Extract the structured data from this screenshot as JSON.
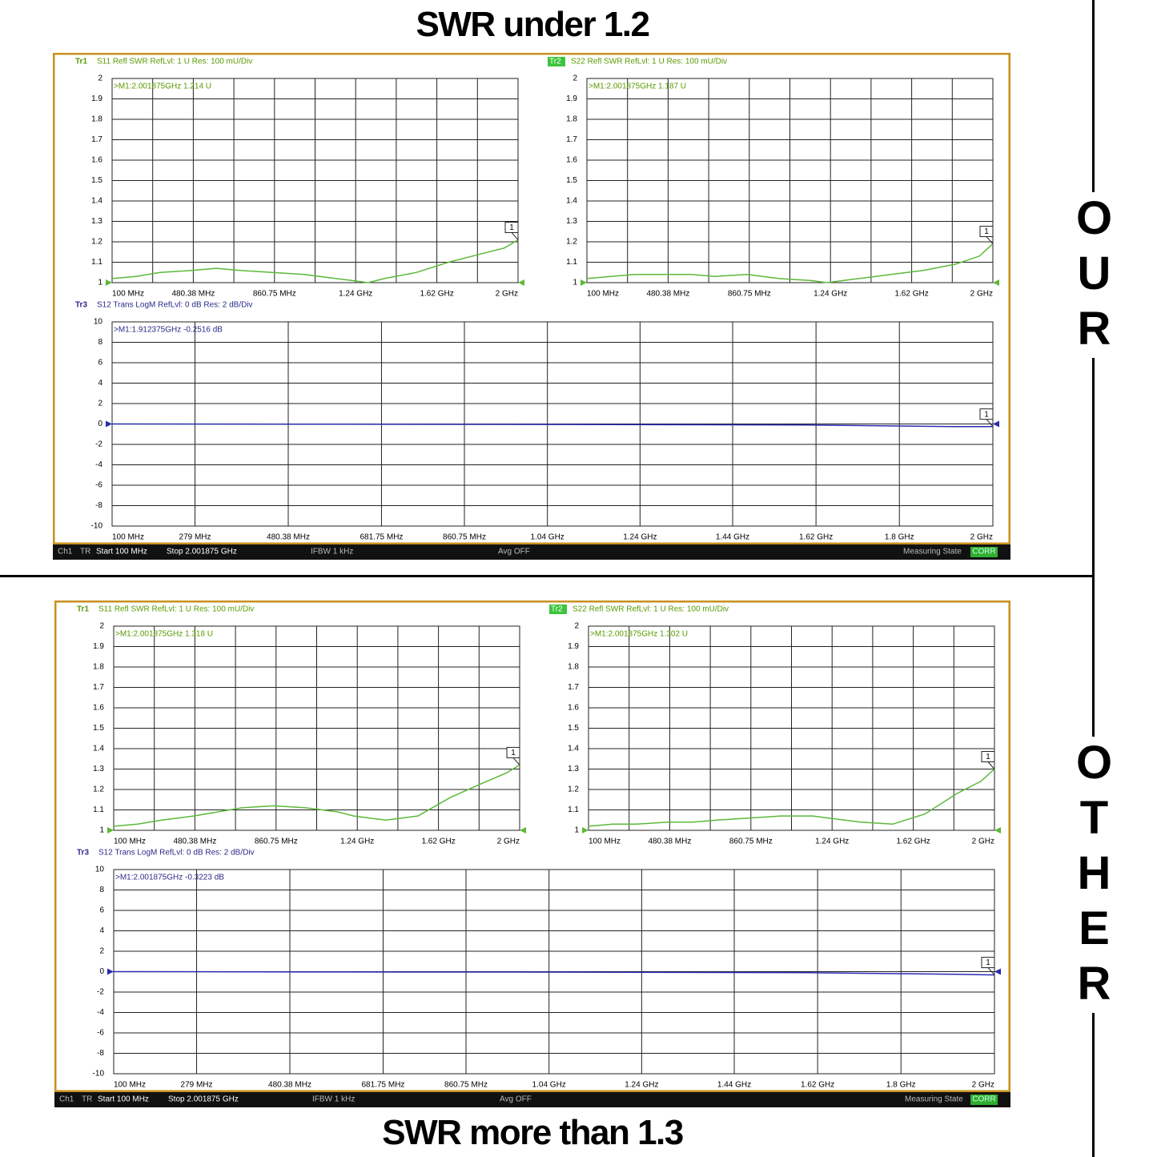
{
  "title_top": "SWR under 1.2",
  "title_bottom": "SWR more than 1.3",
  "side_top": "OUR",
  "side_bottom": "OTHER",
  "status_bars": [
    {
      "channel": "Ch1",
      "mode": "TR",
      "start": "Start 100 MHz",
      "stop": "Stop 2.001875 GHz",
      "ifbw": "IFBW 1 kHz",
      "avg": "Avg OFF",
      "state": "Measuring State",
      "corr": "CORR"
    },
    {
      "channel": "Ch1",
      "mode": "TR",
      "start": "Start 100 MHz",
      "stop": "Stop 2.001875 GHz",
      "ifbw": "IFBW 1 kHz",
      "avg": "Avg OFF",
      "state": "Measuring State",
      "corr": "CORR"
    }
  ],
  "chart_data": [
    {
      "type": "line",
      "trace": "Tr1",
      "title": "S11 Refl SWR RefLvl: 1  U Res: 100 mU/Div",
      "marker_readout": ">M1:2.001875GHz 1.214 U",
      "marker": "1",
      "color": "#5cb83a",
      "grid": true,
      "xlim": [
        100,
        2001.875
      ],
      "ylim": [
        1,
        2
      ],
      "xticks": [
        {
          "value": 100,
          "label": "100 MHz"
        },
        {
          "value": 290.19,
          "label": null
        },
        {
          "value": 480.38,
          "label": "480.38 MHz"
        },
        {
          "value": 670.56,
          "label": null
        },
        {
          "value": 860.75,
          "label": "860.75 MHz"
        },
        {
          "value": 1050.94,
          "label": null
        },
        {
          "value": 1241.13,
          "label": "1.24 GHz"
        },
        {
          "value": 1431.31,
          "label": null
        },
        {
          "value": 1621.5,
          "label": "1.62 GHz"
        },
        {
          "value": 1811.69,
          "label": null
        },
        {
          "value": 2001.875,
          "label": "2 GHz"
        }
      ],
      "yticks": [
        1,
        1.1,
        1.2,
        1.3,
        1.4,
        1.5,
        1.6,
        1.7,
        1.8,
        1.9,
        2
      ],
      "x": [
        100,
        212.5,
        325,
        475,
        588,
        700,
        850,
        1000,
        1150,
        1225,
        1300,
        1375,
        1525,
        1676,
        1826,
        1938,
        2001.875
      ],
      "values": [
        1.02,
        1.03,
        1.05,
        1.06,
        1.07,
        1.06,
        1.05,
        1.04,
        1.02,
        1.01,
        1.0,
        1.02,
        1.05,
        1.1,
        1.14,
        1.17,
        1.21
      ]
    },
    {
      "type": "line",
      "trace": "Tr2",
      "title": "S22 Refl SWR RefLvl: 1  U Res: 100 mU/Div",
      "marker_readout": ">M1:2.001875GHz 1.187 U",
      "marker": "1",
      "color": "#5cb83a",
      "grid": true,
      "xlim": [
        100,
        2001.875
      ],
      "ylim": [
        1,
        2
      ],
      "xticks": [
        {
          "value": 100,
          "label": "100 MHz"
        },
        {
          "value": 290.19,
          "label": null
        },
        {
          "value": 480.38,
          "label": "480.38 MHz"
        },
        {
          "value": 670.56,
          "label": null
        },
        {
          "value": 860.75,
          "label": "860.75 MHz"
        },
        {
          "value": 1050.94,
          "label": null
        },
        {
          "value": 1241.13,
          "label": "1.24 GHz"
        },
        {
          "value": 1431.31,
          "label": null
        },
        {
          "value": 1621.5,
          "label": "1.62 GHz"
        },
        {
          "value": 1811.69,
          "label": null
        },
        {
          "value": 2001.875,
          "label": "2 GHz"
        }
      ],
      "yticks": [
        1,
        1.1,
        1.2,
        1.3,
        1.4,
        1.5,
        1.6,
        1.7,
        1.8,
        1.9,
        2
      ],
      "x": [
        100,
        212.5,
        325,
        475,
        588,
        700,
        850,
        1000,
        1150,
        1225,
        1300,
        1375,
        1525,
        1676,
        1826,
        1938,
        2001.875
      ],
      "values": [
        1.02,
        1.03,
        1.04,
        1.04,
        1.04,
        1.03,
        1.04,
        1.02,
        1.01,
        1.0,
        1.01,
        1.02,
        1.04,
        1.06,
        1.09,
        1.13,
        1.19
      ]
    },
    {
      "type": "line",
      "trace": "Tr3",
      "title": "S12 Trans LogM RefLvl: 0  dB Res: 2  dB/Div",
      "marker_readout": ">M1:1.912375GHz -0.2516 dB",
      "marker": "1",
      "color": "#2a2ab0",
      "grid": true,
      "xlim": [
        100,
        2001.875
      ],
      "ylim": [
        -10,
        10
      ],
      "xticks": [
        {
          "value": 100,
          "label": "100 MHz"
        },
        {
          "value": 279,
          "label": "279 MHz"
        },
        {
          "value": 480.38,
          "label": "480.38 MHz"
        },
        {
          "value": 681.75,
          "label": "681.75 MHz"
        },
        {
          "value": 860.75,
          "label": "860.75 MHz"
        },
        {
          "value": 1040,
          "label": "1.04 GHz"
        },
        {
          "value": 1240,
          "label": "1.24 GHz"
        },
        {
          "value": 1440,
          "label": "1.44 GHz"
        },
        {
          "value": 1620,
          "label": "1.62 GHz"
        },
        {
          "value": 1800,
          "label": "1.8 GHz"
        },
        {
          "value": 2001.875,
          "label": "2 GHz"
        }
      ],
      "yticks": [
        -10,
        -8,
        -6,
        -4,
        -2,
        0,
        2,
        4,
        6,
        8,
        10
      ],
      "x": [
        100,
        600,
        1100,
        1600,
        1912.375,
        2001.875
      ],
      "values": [
        0,
        -0.02,
        -0.05,
        -0.1,
        -0.25,
        -0.25
      ]
    },
    {
      "type": "line",
      "trace": "Tr1",
      "title": "S11 Refl SWR RefLvl: 1  U Res: 100 mU/Div",
      "marker_readout": ">M1:2.001875GHz 1.318 U",
      "marker": "1",
      "color": "#5cb83a",
      "grid": true,
      "xlim": [
        100,
        2001.875
      ],
      "ylim": [
        1,
        2
      ],
      "xticks": [
        {
          "value": 100,
          "label": "100 MHz"
        },
        {
          "value": 290.19,
          "label": null
        },
        {
          "value": 480.38,
          "label": "480.38 MHz"
        },
        {
          "value": 670.56,
          "label": null
        },
        {
          "value": 860.75,
          "label": "860.75 MHz"
        },
        {
          "value": 1050.94,
          "label": null
        },
        {
          "value": 1241.13,
          "label": "1.24 GHz"
        },
        {
          "value": 1431.31,
          "label": null
        },
        {
          "value": 1621.5,
          "label": "1.62 GHz"
        },
        {
          "value": 1811.69,
          "label": null
        },
        {
          "value": 2001.875,
          "label": "2 GHz"
        }
      ],
      "yticks": [
        1,
        1.1,
        1.2,
        1.3,
        1.4,
        1.5,
        1.6,
        1.7,
        1.8,
        1.9,
        2
      ],
      "x": [
        100,
        212.5,
        325,
        475,
        588,
        700,
        850,
        1000,
        1150,
        1225,
        1300,
        1375,
        1525,
        1676,
        1826,
        1938,
        2001.875
      ],
      "values": [
        1.02,
        1.03,
        1.05,
        1.07,
        1.09,
        1.11,
        1.12,
        1.11,
        1.09,
        1.07,
        1.06,
        1.05,
        1.07,
        1.16,
        1.23,
        1.28,
        1.32
      ]
    },
    {
      "type": "line",
      "trace": "Tr2",
      "title": "S22 Refl SWR RefLvl: 1  U Res: 100 mU/Div",
      "marker_readout": ">M1:2.001875GHz 1.302 U",
      "marker": "1",
      "color": "#5cb83a",
      "grid": true,
      "xlim": [
        100,
        2001.875
      ],
      "ylim": [
        1,
        2
      ],
      "xticks": [
        {
          "value": 100,
          "label": "100 MHz"
        },
        {
          "value": 290.19,
          "label": null
        },
        {
          "value": 480.38,
          "label": "480.38 MHz"
        },
        {
          "value": 670.56,
          "label": null
        },
        {
          "value": 860.75,
          "label": "860.75 MHz"
        },
        {
          "value": 1050.94,
          "label": null
        },
        {
          "value": 1241.13,
          "label": "1.24 GHz"
        },
        {
          "value": 1431.31,
          "label": null
        },
        {
          "value": 1621.5,
          "label": "1.62 GHz"
        },
        {
          "value": 1811.69,
          "label": null
        },
        {
          "value": 2001.875,
          "label": "2 GHz"
        }
      ],
      "yticks": [
        1,
        1.1,
        1.2,
        1.3,
        1.4,
        1.5,
        1.6,
        1.7,
        1.8,
        1.9,
        2
      ],
      "x": [
        100,
        212.5,
        325,
        475,
        588,
        700,
        850,
        1000,
        1150,
        1225,
        1300,
        1375,
        1525,
        1676,
        1826,
        1938,
        2001.875
      ],
      "values": [
        1.02,
        1.03,
        1.03,
        1.04,
        1.04,
        1.05,
        1.06,
        1.07,
        1.07,
        1.06,
        1.05,
        1.04,
        1.03,
        1.08,
        1.18,
        1.24,
        1.3
      ]
    },
    {
      "type": "line",
      "trace": "Tr3",
      "title": "S12 Trans LogM RefLvl: 0  dB Res: 2  dB/Div",
      "marker_readout": ">M1:2.001875GHz -0.3223 dB",
      "marker": "1",
      "color": "#2a2ab0",
      "grid": true,
      "xlim": [
        100,
        2001.875
      ],
      "ylim": [
        -10,
        10
      ],
      "xticks": [
        {
          "value": 100,
          "label": "100 MHz"
        },
        {
          "value": 279,
          "label": "279 MHz"
        },
        {
          "value": 480.38,
          "label": "480.38 MHz"
        },
        {
          "value": 681.75,
          "label": "681.75 MHz"
        },
        {
          "value": 860.75,
          "label": "860.75 MHz"
        },
        {
          "value": 1040,
          "label": "1.04 GHz"
        },
        {
          "value": 1240,
          "label": "1.24 GHz"
        },
        {
          "value": 1440,
          "label": "1.44 GHz"
        },
        {
          "value": 1620,
          "label": "1.62 GHz"
        },
        {
          "value": 1800,
          "label": "1.8 GHz"
        },
        {
          "value": 2001.875,
          "label": "2 GHz"
        }
      ],
      "yticks": [
        -10,
        -8,
        -6,
        -4,
        -2,
        0,
        2,
        4,
        6,
        8,
        10
      ],
      "x": [
        100,
        600,
        1100,
        1600,
        1912.375,
        2001.875
      ],
      "values": [
        0,
        -0.03,
        -0.05,
        -0.1,
        -0.25,
        -0.32
      ]
    }
  ]
}
